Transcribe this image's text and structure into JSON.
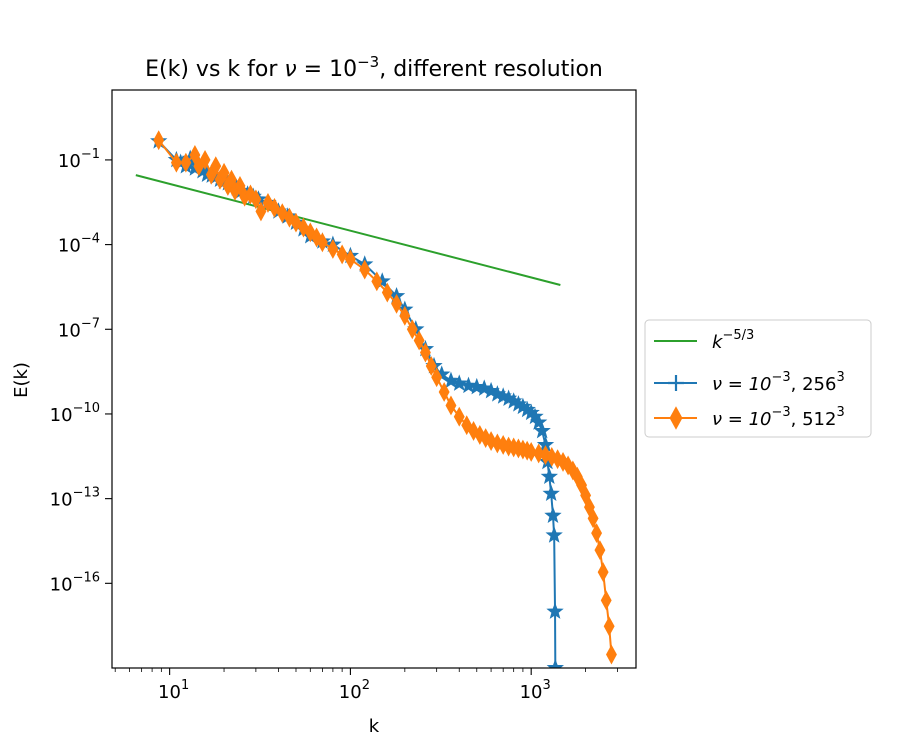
{
  "chart_data": {
    "type": "line",
    "title": {
      "base": "E(k) vs k for ",
      "nu": "ν",
      "eq": " = 10",
      "exp": "−3",
      "rest": ", different resolution"
    },
    "xlabel": "k",
    "ylabel": "E(k)",
    "xscale": "log",
    "yscale": "log",
    "xlim": [
      4.8,
      3800
    ],
    "ylim": [
      1e-19,
      30.0
    ],
    "grid": false,
    "legend_position": "outside-right",
    "x_ticks": [
      {
        "value": 10,
        "base": "10",
        "exp": "1"
      },
      {
        "value": 100,
        "base": "10",
        "exp": "2"
      },
      {
        "value": 1000,
        "base": "10",
        "exp": "3"
      }
    ],
    "y_ticks": [
      {
        "value": 0.1,
        "base": "10",
        "exp": "−1"
      },
      {
        "value": 0.0001,
        "base": "10",
        "exp": "−4"
      },
      {
        "value": 1e-07,
        "base": "10",
        "exp": "−7"
      },
      {
        "value": 1e-10,
        "base": "10",
        "exp": "−10"
      },
      {
        "value": 1e-13,
        "base": "10",
        "exp": "−13"
      },
      {
        "value": 1e-16,
        "base": "10",
        "exp": "−16"
      }
    ],
    "series": [
      {
        "name": "k^{-5/3}",
        "label": {
          "base": "k",
          "exp": "−5/3",
          "suffix": ""
        },
        "color": "#2ca02c",
        "marker": "none",
        "x": [
          6.5,
          1450
        ],
        "y": [
          0.0289,
          3.7e-06
        ]
      },
      {
        "name": "ν = 10^{-3}, 256^3",
        "label": {
          "base": "ν = 10",
          "exp": "−3",
          "suffix": ", 256",
          "exp2": "3"
        },
        "color": "#1f77b4",
        "marker": "star",
        "x": [
          8.7,
          10.9,
          11.5,
          12.3,
          13.0,
          13.8,
          14.5,
          15.2,
          16.1,
          17.1,
          18.0,
          19.0,
          20.0,
          21.0,
          22.0,
          23.5,
          25.0,
          27.0,
          29.0,
          31.0,
          35.0,
          40.0,
          45.0,
          50.0,
          55.0,
          60.0,
          70.0,
          80.0,
          100.0,
          120.0,
          150.0,
          180.0,
          200.0,
          230.0,
          260.0,
          290.0,
          320.0,
          360.0,
          400.0,
          450.0,
          500.0,
          550.0,
          600.0,
          650.0,
          700.0,
          750.0,
          800.0,
          850.0,
          900.0,
          950.0,
          1000.0,
          1050.0,
          1100.0,
          1150.0,
          1200.0,
          1230.0,
          1260.0,
          1290.0,
          1320.0,
          1340.0,
          1355.0,
          1360.0
        ],
        "y": [
          0.46,
          0.1,
          0.08,
          0.06,
          0.11,
          0.05,
          0.07,
          0.04,
          0.03,
          0.028,
          0.025,
          0.02,
          0.017,
          0.015,
          0.012,
          0.01,
          0.008,
          0.006,
          0.005,
          0.004,
          0.003,
          0.0015,
          0.001,
          0.0006,
          0.00035,
          0.0002,
          0.00013,
          0.0001,
          4e-05,
          2e-05,
          5e-06,
          1.5e-06,
          5e-07,
          1e-07,
          2e-08,
          5e-09,
          2.5e-09,
          1.5e-09,
          1.2e-09,
          1e-09,
          9e-10,
          8e-10,
          6.5e-10,
          5e-10,
          4.2e-10,
          3.5e-10,
          2.8e-10,
          2.2e-10,
          1.8e-10,
          1.4e-10,
          1.1e-10,
          8e-11,
          5e-11,
          2.5e-11,
          8e-12,
          2e-12,
          6e-13,
          1.5e-13,
          2.5e-14,
          5e-15,
          1e-17,
          1e-19
        ]
      },
      {
        "name": "ν = 10^{-3}, 512^3",
        "label": {
          "base": "ν = 10",
          "exp": "−3",
          "suffix": ", 512",
          "exp2": "3"
        },
        "color": "#ff7f0e",
        "marker": "thin_diamond",
        "x": [
          8.7,
          10.9,
          12.3,
          13.8,
          14.5,
          15.7,
          17.0,
          18.0,
          19.0,
          20.0,
          21.0,
          22.0,
          23.0,
          24.5,
          26.0,
          28.0,
          30.0,
          32.0,
          35.0,
          38.0,
          42.0,
          46.0,
          50.0,
          55.0,
          60.0,
          65.0,
          70.0,
          80.0,
          90.0,
          100.0,
          120.0,
          140.0,
          160.0,
          180.0,
          200.0,
          220.0,
          240.0,
          260.0,
          280.0,
          300.0,
          330.0,
          360.0,
          400.0,
          440.0,
          480.0,
          520.0,
          560.0,
          600.0,
          650.0,
          700.0,
          750.0,
          800.0,
          850.0,
          900.0,
          950.0,
          1000.0,
          1100.0,
          1200.0,
          1300.0,
          1400.0,
          1500.0,
          1600.0,
          1700.0,
          1800.0,
          1900.0,
          2000.0,
          2100.0,
          2200.0,
          2300.0,
          2400.0,
          2500.0,
          2600.0,
          2700.0,
          2780.0
        ],
        "y": [
          0.5,
          0.08,
          0.08,
          0.15,
          0.06,
          0.1,
          0.03,
          0.06,
          0.02,
          0.035,
          0.012,
          0.02,
          0.008,
          0.012,
          0.005,
          0.006,
          0.004,
          0.0015,
          0.003,
          0.002,
          0.0013,
          0.0009,
          0.0006,
          0.0004,
          0.00027,
          0.00018,
          0.00012,
          7e-05,
          4.5e-05,
          3e-05,
          1.3e-05,
          5e-06,
          2e-06,
          8e-07,
          3e-07,
          1e-07,
          4e-08,
          1.5e-08,
          5e-09,
          2e-09,
          6e-10,
          2e-10,
          8e-11,
          4e-11,
          2.5e-11,
          1.8e-11,
          1.4e-11,
          1.1e-11,
          9e-12,
          8e-12,
          7e-12,
          6.5e-12,
          6e-12,
          5.5e-12,
          5e-12,
          4.5e-12,
          4e-12,
          3.5e-12,
          3e-12,
          2.5e-12,
          2e-12,
          1.5e-12,
          1e-12,
          6e-13,
          3e-13,
          1.3e-13,
          5e-14,
          2e-14,
          6e-15,
          1.5e-15,
          2.5e-16,
          2.5e-17,
          3e-18,
          3e-19
        ]
      }
    ]
  }
}
